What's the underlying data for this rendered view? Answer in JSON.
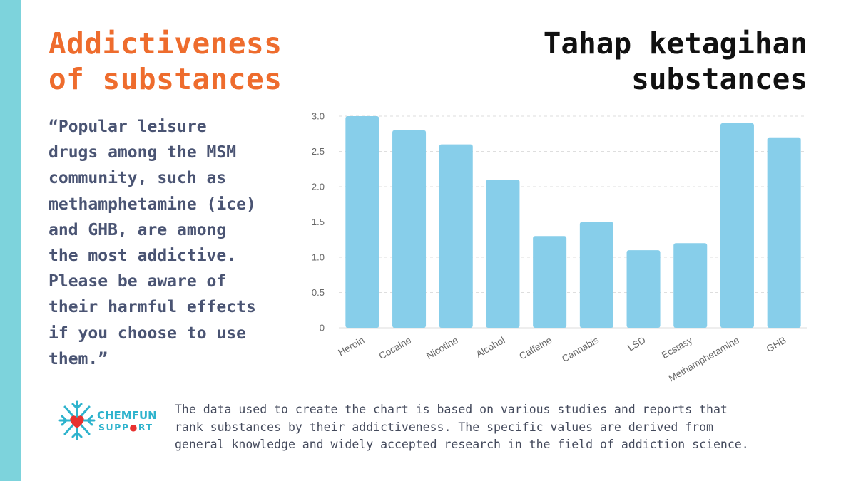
{
  "header": {
    "title_en_line1": "Addictiveness",
    "title_en_line2": "of substances",
    "title_ms_line1": "Tahap ketagihan",
    "title_ms_line2": "substances"
  },
  "quote": {
    "lines": [
      "“Popular leisure",
      "drugs among the MSM",
      "community, such as",
      "methamphetamine (ice)",
      "and GHB, are among",
      "the most addictive.",
      "Please be aware of",
      "their harmful effects",
      "if you choose to use",
      "them.”"
    ]
  },
  "chart_data": {
    "type": "bar",
    "categories": [
      "Heroin",
      "Cocaine",
      "Nicotine",
      "Alcohol",
      "Caffeine",
      "Cannabis",
      "LSD",
      "Ecstasy",
      "Methamphetamine",
      "GHB"
    ],
    "values": [
      3.0,
      2.8,
      2.6,
      2.1,
      1.3,
      1.5,
      1.1,
      1.2,
      2.9,
      2.7
    ],
    "ylim": [
      0,
      3.0
    ],
    "yticks": [
      "0",
      "0.5",
      "1.0",
      "1.5",
      "2.0",
      "2.5",
      "3.0"
    ],
    "title": "",
    "xlabel": "",
    "ylabel": "",
    "grid": true
  },
  "logo": {
    "line1": "CHEMFUN",
    "line2_a": "SUPP",
    "line2_b": "RT"
  },
  "footnote": {
    "line1": "The data used to create the chart is based on various studies and reports that",
    "line2": "rank substances by their addictiveness. The specific values are derived from",
    "line3": "general knowledge and widely accepted research in the field of addiction science."
  },
  "colors": {
    "accent": "#ee6c2d",
    "bar": "#87ceea",
    "sidebar": "#7dd3dc",
    "quote": "#4a5473",
    "logo_red": "#e8312f",
    "logo_blue": "#2eb3cd"
  }
}
